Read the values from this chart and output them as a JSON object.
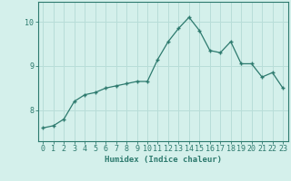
{
  "x": [
    0,
    1,
    2,
    3,
    4,
    5,
    6,
    7,
    8,
    9,
    10,
    11,
    12,
    13,
    14,
    15,
    16,
    17,
    18,
    19,
    20,
    21,
    22,
    23
  ],
  "y": [
    7.6,
    7.65,
    7.8,
    8.2,
    8.35,
    8.4,
    8.5,
    8.55,
    8.6,
    8.65,
    8.65,
    9.15,
    9.55,
    9.85,
    10.1,
    9.8,
    9.35,
    9.3,
    9.55,
    9.05,
    9.05,
    8.75,
    8.85,
    8.5
  ],
  "line_color": "#2d7a6e",
  "marker": "+",
  "marker_size": 3.5,
  "marker_lw": 1.0,
  "line_width": 0.9,
  "bg_color": "#d4f0eb",
  "grid_color": "#b8ddd8",
  "axis_color": "#2d7a6e",
  "text_color": "#2d7a6e",
  "xlabel": "Humidex (Indice chaleur)",
  "ylim": [
    7.3,
    10.45
  ],
  "xlim": [
    -0.5,
    23.5
  ],
  "yticks": [
    8,
    9,
    10
  ],
  "xticks": [
    0,
    1,
    2,
    3,
    4,
    5,
    6,
    7,
    8,
    9,
    10,
    11,
    12,
    13,
    14,
    15,
    16,
    17,
    18,
    19,
    20,
    21,
    22,
    23
  ],
  "label_fontsize": 6.5,
  "tick_fontsize": 6.0
}
